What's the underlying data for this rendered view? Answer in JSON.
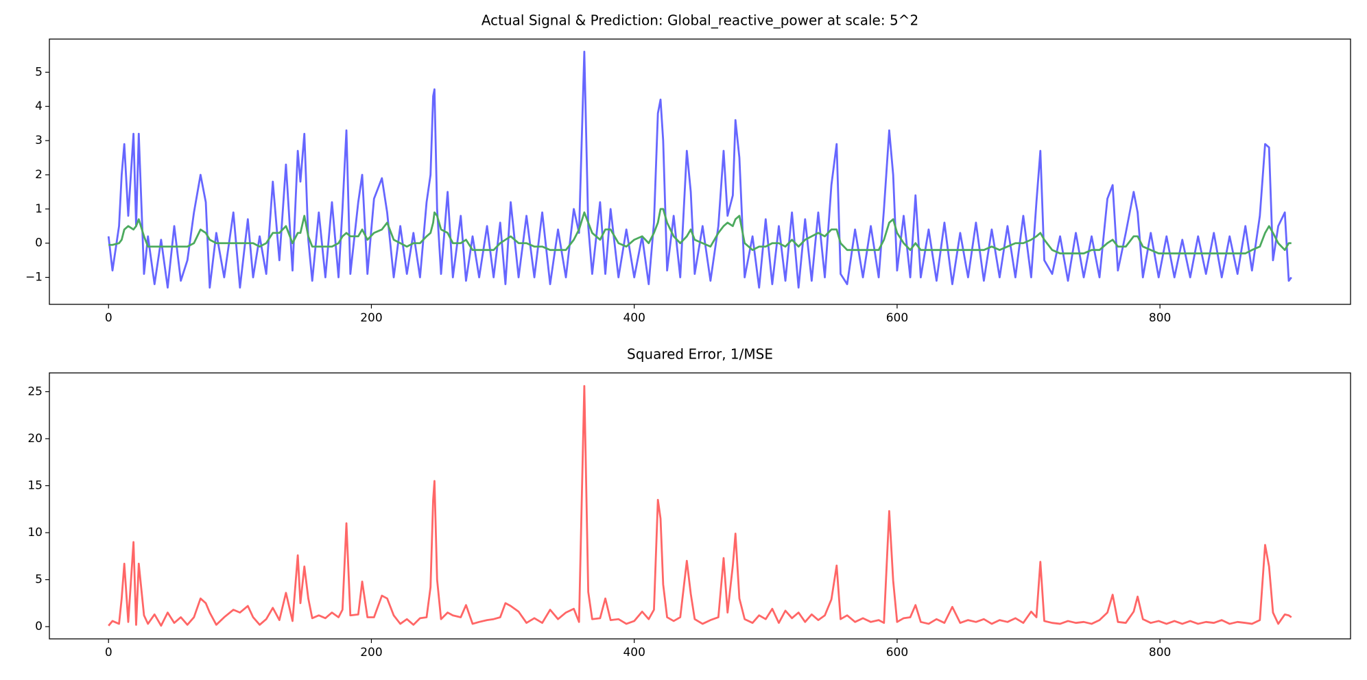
{
  "chart_data": [
    {
      "type": "line",
      "title": "Actual Signal & Prediction: Global_reactive_power at scale: 5^2",
      "x": [
        0,
        3,
        8,
        10,
        12,
        15,
        19,
        21,
        23,
        27,
        30,
        35,
        40,
        45,
        50,
        55,
        60,
        65,
        70,
        74,
        77,
        82,
        88,
        95,
        100,
        106,
        110,
        115,
        120,
        125,
        130,
        135,
        140,
        144,
        146,
        149,
        152,
        155,
        160,
        165,
        170,
        175,
        178,
        181,
        184,
        190,
        193,
        197,
        202,
        208,
        212,
        217,
        222,
        227,
        232,
        237,
        242,
        245,
        247,
        248,
        250,
        253,
        258,
        262,
        268,
        272,
        277,
        282,
        288,
        293,
        298,
        302,
        306,
        312,
        318,
        324,
        330,
        336,
        342,
        348,
        354,
        358,
        362,
        365,
        368,
        374,
        378,
        382,
        388,
        394,
        400,
        406,
        411,
        415,
        418,
        420,
        422,
        425,
        430,
        435,
        440,
        443,
        446,
        452,
        458,
        464,
        468,
        471,
        475,
        477,
        480,
        484,
        490,
        495,
        500,
        505,
        510,
        515,
        520,
        525,
        530,
        535,
        540,
        545,
        550,
        554,
        557,
        562,
        568,
        574,
        580,
        586,
        590,
        594,
        597,
        600,
        605,
        610,
        614,
        618,
        624,
        630,
        636,
        642,
        648,
        654,
        660,
        666,
        672,
        678,
        684,
        690,
        696,
        702,
        706,
        709,
        712,
        718,
        724,
        730,
        736,
        742,
        748,
        754,
        760,
        764,
        768,
        774,
        780,
        783,
        787,
        793,
        799,
        805,
        811,
        817,
        823,
        829,
        835,
        841,
        847,
        853,
        859,
        865,
        870,
        876,
        880,
        883,
        886,
        890,
        895,
        898,
        900
      ],
      "series": [
        {
          "color": "#6666ff",
          "values": [
            0.2,
            -0.8,
            0.5,
            2.0,
            2.9,
            0.8,
            3.2,
            0.5,
            3.2,
            -0.9,
            0.2,
            -1.2,
            0.1,
            -1.3,
            0.5,
            -1.1,
            -0.5,
            0.9,
            2.0,
            1.2,
            -1.3,
            0.3,
            -1.0,
            0.9,
            -1.3,
            0.7,
            -1.0,
            0.2,
            -0.9,
            1.8,
            -0.5,
            2.3,
            -0.8,
            2.7,
            1.8,
            3.2,
            0.1,
            -1.1,
            0.9,
            -1.0,
            1.2,
            -1.0,
            1.0,
            3.3,
            -0.9,
            1.2,
            2.0,
            -0.9,
            1.3,
            1.9,
            0.9,
            -1.0,
            0.5,
            -0.9,
            0.3,
            -1.0,
            1.2,
            2.0,
            4.3,
            4.5,
            1.0,
            -0.9,
            1.5,
            -1.0,
            0.8,
            -1.1,
            0.2,
            -1.0,
            0.5,
            -1.0,
            0.6,
            -1.2,
            1.2,
            -1.0,
            0.8,
            -1.0,
            0.9,
            -1.2,
            0.4,
            -1.0,
            1.0,
            0.3,
            5.6,
            0.5,
            -0.9,
            1.2,
            -0.9,
            1.0,
            -1.0,
            0.4,
            -1.0,
            0.2,
            -1.2,
            0.6,
            3.8,
            4.2,
            3.0,
            -0.8,
            0.8,
            -1.0,
            2.7,
            1.5,
            -0.9,
            0.5,
            -1.1,
            0.5,
            2.7,
            0.8,
            1.4,
            3.6,
            2.5,
            -1.0,
            0.2,
            -1.3,
            0.7,
            -1.2,
            0.5,
            -1.1,
            0.9,
            -1.3,
            0.7,
            -1.1,
            0.9,
            -1.0,
            1.7,
            2.9,
            -0.9,
            -1.2,
            0.4,
            -1.0,
            0.5,
            -1.0,
            1.0,
            3.3,
            2.0,
            -0.8,
            0.8,
            -1.0,
            1.4,
            -1.0,
            0.4,
            -1.1,
            0.6,
            -1.2,
            0.3,
            -1.0,
            0.6,
            -1.1,
            0.4,
            -1.0,
            0.5,
            -1.0,
            0.8,
            -1.0,
            1.2,
            2.7,
            -0.5,
            -0.9,
            0.2,
            -1.1,
            0.3,
            -1.0,
            0.2,
            -1.0,
            1.3,
            1.7,
            -0.8,
            0.3,
            1.5,
            0.9,
            -1.0,
            0.3,
            -1.0,
            0.2,
            -1.0,
            0.1,
            -1.0,
            0.2,
            -0.9,
            0.3,
            -1.0,
            0.2,
            -0.9,
            0.5,
            -0.8,
            0.8,
            2.9,
            2.8,
            -0.5,
            0.5,
            0.9,
            -1.1,
            -1.0
          ]
        },
        {
          "color": "#4caa5e",
          "values": [
            -0.05,
            -0.05,
            0.0,
            0.1,
            0.4,
            0.5,
            0.4,
            0.5,
            0.7,
            0.2,
            -0.1,
            -0.1,
            -0.1,
            -0.1,
            -0.1,
            -0.1,
            -0.1,
            0.0,
            0.4,
            0.3,
            0.1,
            0.0,
            0.0,
            0.0,
            0.0,
            0.0,
            0.0,
            -0.1,
            0.0,
            0.3,
            0.3,
            0.5,
            0.0,
            0.3,
            0.3,
            0.8,
            0.2,
            -0.1,
            -0.1,
            -0.1,
            -0.1,
            0.0,
            0.2,
            0.3,
            0.2,
            0.2,
            0.4,
            0.1,
            0.3,
            0.4,
            0.6,
            0.1,
            0.0,
            -0.1,
            0.0,
            0.0,
            0.2,
            0.3,
            0.6,
            0.9,
            0.8,
            0.4,
            0.3,
            0.0,
            0.0,
            0.1,
            -0.2,
            -0.2,
            -0.2,
            -0.2,
            0.0,
            0.1,
            0.2,
            0.0,
            0.0,
            -0.1,
            -0.1,
            -0.2,
            -0.2,
            -0.2,
            0.1,
            0.4,
            0.9,
            0.6,
            0.3,
            0.1,
            0.4,
            0.4,
            0.0,
            -0.1,
            0.1,
            0.2,
            0.0,
            0.3,
            0.6,
            1.0,
            1.0,
            0.6,
            0.2,
            0.0,
            0.2,
            0.4,
            0.1,
            0.0,
            -0.1,
            0.3,
            0.5,
            0.6,
            0.5,
            0.7,
            0.8,
            0.0,
            -0.2,
            -0.1,
            -0.1,
            0.0,
            0.0,
            -0.1,
            0.1,
            -0.1,
            0.1,
            0.2,
            0.3,
            0.2,
            0.4,
            0.4,
            0.0,
            -0.2,
            -0.2,
            -0.2,
            -0.2,
            -0.2,
            0.1,
            0.6,
            0.7,
            0.3,
            0.0,
            -0.2,
            0.0,
            -0.2,
            -0.2,
            -0.2,
            -0.2,
            -0.2,
            -0.2,
            -0.2,
            -0.2,
            -0.2,
            -0.1,
            -0.2,
            -0.1,
            0.0,
            0.0,
            0.1,
            0.2,
            0.3,
            0.1,
            -0.2,
            -0.3,
            -0.3,
            -0.3,
            -0.3,
            -0.2,
            -0.2,
            0.0,
            0.1,
            -0.1,
            -0.1,
            0.2,
            0.2,
            -0.1,
            -0.2,
            -0.3,
            -0.3,
            -0.3,
            -0.3,
            -0.3,
            -0.3,
            -0.3,
            -0.3,
            -0.3,
            -0.3,
            -0.3,
            -0.3,
            -0.2,
            -0.1,
            0.3,
            0.5,
            0.3,
            0.0,
            -0.2,
            0.0,
            0.0
          ]
        }
      ],
      "xlim": [
        -45,
        945
      ],
      "ylim": [
        -1.79,
        5.97
      ],
      "xticks": [
        0,
        200,
        400,
        600,
        800
      ],
      "yticks": [
        {
          "value": -1,
          "label": "−1"
        },
        0,
        1,
        2,
        3,
        4,
        5
      ]
    },
    {
      "type": "line",
      "title": "Squared Error, 1/MSE",
      "x": [
        0,
        3,
        8,
        10,
        12,
        15,
        19,
        21,
        23,
        27,
        30,
        35,
        40,
        45,
        50,
        55,
        60,
        65,
        70,
        74,
        77,
        82,
        88,
        95,
        100,
        106,
        110,
        115,
        120,
        125,
        130,
        135,
        140,
        144,
        146,
        149,
        152,
        155,
        160,
        165,
        170,
        175,
        178,
        181,
        184,
        190,
        193,
        197,
        202,
        208,
        212,
        217,
        222,
        227,
        232,
        237,
        242,
        245,
        247,
        248,
        250,
        253,
        258,
        262,
        268,
        272,
        277,
        282,
        288,
        293,
        298,
        302,
        306,
        312,
        318,
        324,
        330,
        336,
        342,
        348,
        354,
        358,
        362,
        365,
        368,
        374,
        378,
        382,
        388,
        394,
        400,
        406,
        411,
        415,
        418,
        420,
        422,
        425,
        430,
        435,
        440,
        443,
        446,
        452,
        458,
        464,
        468,
        471,
        475,
        477,
        480,
        484,
        490,
        495,
        500,
        505,
        510,
        515,
        520,
        525,
        530,
        535,
        540,
        545,
        550,
        554,
        557,
        562,
        568,
        574,
        580,
        586,
        590,
        594,
        597,
        600,
        605,
        610,
        614,
        618,
        624,
        630,
        636,
        642,
        648,
        654,
        660,
        666,
        672,
        678,
        684,
        690,
        696,
        702,
        706,
        709,
        712,
        718,
        724,
        730,
        736,
        742,
        748,
        754,
        760,
        764,
        768,
        774,
        780,
        783,
        787,
        793,
        799,
        805,
        811,
        817,
        823,
        829,
        835,
        841,
        847,
        853,
        859,
        865,
        870,
        876,
        880,
        883,
        886,
        890,
        895,
        898,
        900
      ],
      "series": [
        {
          "color": "#ff6666",
          "values": [
            0.1,
            0.6,
            0.3,
            3,
            6.7,
            0.5,
            9,
            0.2,
            6.7,
            1.2,
            0.3,
            1.3,
            0.1,
            1.5,
            0.4,
            1.0,
            0.2,
            1.0,
            3.0,
            2.5,
            1.5,
            0.2,
            1.0,
            1.8,
            1.5,
            2.2,
            1.0,
            0.2,
            0.8,
            2.0,
            0.7,
            3.6,
            0.6,
            7.6,
            2.5,
            6.4,
            3.0,
            0.9,
            1.2,
            0.9,
            1.5,
            1.0,
            1.8,
            11,
            1.2,
            1.3,
            4.8,
            1.0,
            1.0,
            3.3,
            3.0,
            1.2,
            0.3,
            0.8,
            0.2,
            0.9,
            1.0,
            4.2,
            13.5,
            15.5,
            5.0,
            0.8,
            1.5,
            1.2,
            1.0,
            2.3,
            0.3,
            0.5,
            0.7,
            0.8,
            1.0,
            2.5,
            2.2,
            1.6,
            0.4,
            0.9,
            0.4,
            1.8,
            0.8,
            1.5,
            1.9,
            0.5,
            25.6,
            3.7,
            0.8,
            0.9,
            3.0,
            0.7,
            0.8,
            0.3,
            0.6,
            1.6,
            0.8,
            1.8,
            13.5,
            11.5,
            4.5,
            1.0,
            0.6,
            1.0,
            7.0,
            3.5,
            0.8,
            0.3,
            0.7,
            1.0,
            7.3,
            1.5,
            6.5,
            9.9,
            3.0,
            0.8,
            0.4,
            1.2,
            0.8,
            1.9,
            0.4,
            1.7,
            0.9,
            1.5,
            0.5,
            1.3,
            0.7,
            1.2,
            2.9,
            6.5,
            0.8,
            1.2,
            0.5,
            0.9,
            0.5,
            0.7,
            0.4,
            12.3,
            4.9,
            0.5,
            0.9,
            1.0,
            2.3,
            0.5,
            0.3,
            0.8,
            0.4,
            2.1,
            0.4,
            0.7,
            0.5,
            0.8,
            0.3,
            0.7,
            0.5,
            0.9,
            0.4,
            1.6,
            1.0,
            6.9,
            0.6,
            0.4,
            0.3,
            0.6,
            0.4,
            0.5,
            0.3,
            0.7,
            1.5,
            3.4,
            0.5,
            0.4,
            1.6,
            3.2,
            0.8,
            0.4,
            0.6,
            0.3,
            0.6,
            0.3,
            0.6,
            0.3,
            0.5,
            0.4,
            0.7,
            0.3,
            0.5,
            0.4,
            0.3,
            0.7,
            8.7,
            6.4,
            1.5,
            0.3,
            1.3,
            1.2,
            1.0
          ]
        }
      ],
      "xlim": [
        -45,
        945
      ],
      "ylim": [
        -1.3,
        27.0
      ],
      "xticks": [
        0,
        200,
        400,
        600,
        800
      ],
      "yticks": [
        0,
        5,
        10,
        15,
        20,
        25
      ]
    }
  ]
}
